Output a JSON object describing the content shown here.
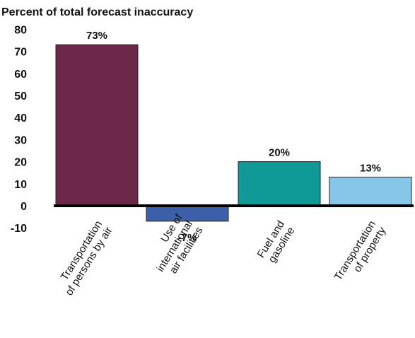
{
  "chart_data": {
    "type": "bar",
    "title": "Percent of total forecast inaccuracy",
    "xlabel": "",
    "ylabel": "",
    "ylim": [
      -10,
      80
    ],
    "yticks": [
      80,
      70,
      60,
      50,
      40,
      30,
      20,
      10,
      0,
      -10
    ],
    "categories": [
      [
        "Transportation",
        "of persons by air"
      ],
      [
        "Use of",
        "international",
        "air facilities"
      ],
      [
        "Fuel and",
        "gasoline"
      ],
      [
        "Transportation",
        "of property"
      ]
    ],
    "values": [
      73,
      -7,
      20,
      13
    ],
    "data_labels": [
      "73%",
      "-7%",
      "20%",
      "13%"
    ],
    "colors": [
      "#6b2848",
      "#3b5fa8",
      "#0f9a97",
      "#86c6e8"
    ],
    "grid": false,
    "legend": "none"
  }
}
